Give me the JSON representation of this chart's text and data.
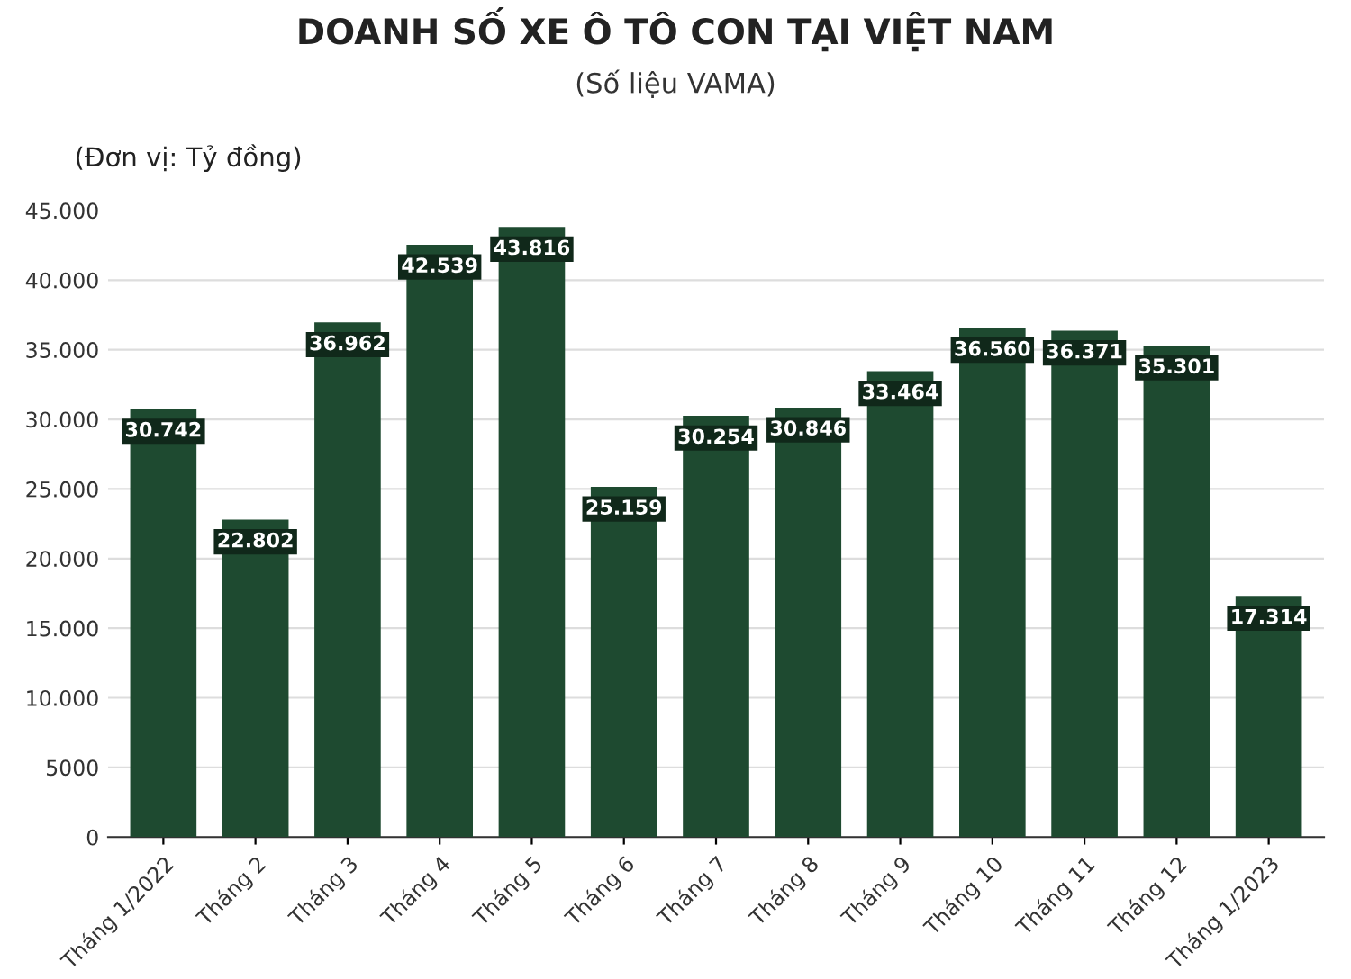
{
  "chart_data": {
    "type": "bar",
    "title": "DOANH SỐ XE Ô TÔ CON TẠI VIỆT NAM",
    "subtitle": "(Số liệu VAMA)",
    "ylabel": "(Đơn vị: Tỷ đồng)",
    "categories": [
      "Tháng 1/2022",
      "Tháng 2",
      "Tháng 3",
      "Tháng 4",
      "Tháng 5",
      "Tháng 6",
      "Tháng 7",
      "Tháng 8",
      "Tháng 9",
      "Tháng 10",
      "Tháng 11",
      "Tháng 12",
      "Tháng 1/2023"
    ],
    "values": [
      30742,
      22802,
      36962,
      42539,
      43816,
      25159,
      30254,
      30846,
      33464,
      36560,
      36371,
      35301,
      17314
    ],
    "value_labels": [
      "30.742",
      "22.802",
      "36.962",
      "42.539",
      "43.816",
      "25.159",
      "30.254",
      "30.846",
      "33.464",
      "36.560",
      "36.371",
      "35.301",
      "17.314"
    ],
    "color": "#1e4a30",
    "ylim": [
      0,
      45000
    ],
    "yticks": [
      0,
      5000,
      {
        "value": 10000,
        "label": "10.000"
      },
      {
        "value": 15000,
        "label": "15.000"
      },
      {
        "value": 20000,
        "label": "20.000"
      },
      {
        "value": 25000,
        "label": "25.000"
      },
      {
        "value": 30000,
        "label": "30.000"
      },
      {
        "value": 35000,
        "label": "35.000"
      },
      {
        "value": 40000,
        "label": "40.000"
      },
      {
        "value": 45000,
        "label": "45.000"
      }
    ],
    "grid": "y",
    "legend": false
  }
}
